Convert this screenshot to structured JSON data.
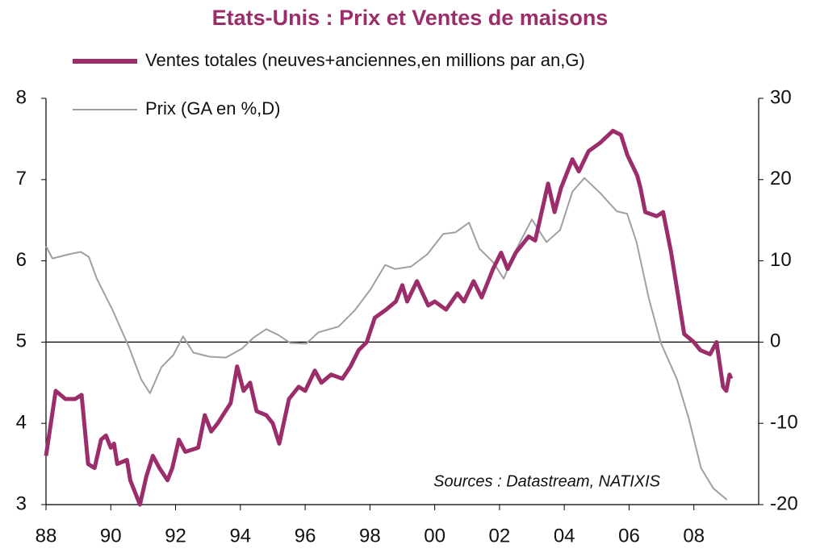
{
  "chart_data": {
    "type": "line",
    "title": "Etats-Unis : Prix et Ventes de maisons",
    "annotation": "Sources : Datastream, NATIXIS",
    "series": [
      {
        "name": "Ventes totales (neuves+anciennes,en millions par an,G)",
        "color": "#9b2d6a",
        "axis": "y",
        "x": [
          1988.0,
          1988.3,
          1988.6,
          1988.9,
          1989.1,
          1989.3,
          1989.5,
          1989.7,
          1989.85,
          1990.0,
          1990.1,
          1990.2,
          1990.5,
          1990.6,
          1990.9,
          1991.1,
          1991.3,
          1991.5,
          1991.75,
          1991.9,
          1992.1,
          1992.3,
          1992.7,
          1992.9,
          1993.1,
          1993.3,
          1993.7,
          1993.9,
          1994.1,
          1994.3,
          1994.5,
          1994.8,
          1995.0,
          1995.2,
          1995.5,
          1995.8,
          1996.0,
          1996.3,
          1996.5,
          1996.8,
          1997.15,
          1997.4,
          1997.65,
          1997.9,
          1998.15,
          1998.5,
          1998.8,
          1999.0,
          1999.15,
          1999.45,
          1999.8,
          2000.0,
          2000.35,
          2000.7,
          2000.9,
          2001.2,
          2001.45,
          2001.8,
          2002.05,
          2002.25,
          2002.5,
          2002.9,
          2003.1,
          2003.5,
          2003.7,
          2003.9,
          2004.25,
          2004.45,
          2004.75,
          2005.1,
          2005.5,
          2005.75,
          2005.95,
          2006.25,
          2006.35,
          2006.5,
          2006.85,
          2007.05,
          2007.3,
          2007.5,
          2007.7,
          2008.0,
          2008.2,
          2008.5,
          2008.7,
          2008.9,
          2009.0,
          2009.1,
          2009.15
        ],
        "values": [
          3.6,
          4.4,
          4.3,
          4.3,
          4.35,
          3.5,
          3.45,
          3.8,
          3.85,
          3.7,
          3.75,
          3.5,
          3.55,
          3.3,
          3.0,
          3.35,
          3.6,
          3.45,
          3.3,
          3.45,
          3.8,
          3.65,
          3.7,
          4.1,
          3.9,
          4.0,
          4.25,
          4.7,
          4.4,
          4.5,
          4.15,
          4.1,
          4.0,
          3.75,
          4.3,
          4.45,
          4.4,
          4.65,
          4.5,
          4.6,
          4.55,
          4.7,
          4.9,
          5.0,
          5.3,
          5.4,
          5.5,
          5.7,
          5.5,
          5.75,
          5.45,
          5.5,
          5.4,
          5.6,
          5.5,
          5.75,
          5.55,
          5.9,
          6.1,
          5.9,
          6.1,
          6.3,
          6.25,
          6.95,
          6.6,
          6.9,
          7.25,
          7.1,
          7.35,
          7.45,
          7.6,
          7.55,
          7.3,
          7.05,
          6.9,
          6.6,
          6.55,
          6.6,
          6.1,
          5.6,
          5.1,
          5.0,
          4.9,
          4.85,
          5.0,
          4.45,
          4.4,
          4.6,
          4.55
        ]
      },
      {
        "name": "Prix (GA en %,D)",
        "color": "#a0a0a0",
        "axis": "y2",
        "x": [
          1988.0,
          1988.2,
          1988.7,
          1989.07,
          1989.32,
          1989.57,
          1990.06,
          1990.56,
          1990.94,
          1991.21,
          1991.56,
          1991.93,
          1992.23,
          1992.55,
          1993.05,
          1993.55,
          1994.05,
          1994.42,
          1994.8,
          1995.16,
          1995.54,
          1996.03,
          1996.41,
          1997.03,
          1997.53,
          1998.02,
          1998.47,
          1998.77,
          1999.27,
          1999.77,
          2000.26,
          2000.64,
          2001.06,
          2001.38,
          2001.81,
          2002.13,
          2002.5,
          2003.0,
          2003.45,
          2003.87,
          2004.25,
          2004.62,
          2005.12,
          2005.62,
          2005.94,
          2006.23,
          2006.61,
          2006.98,
          2007.48,
          2007.85,
          2008.22,
          2008.6,
          2009.02
        ],
        "values": [
          11.8,
          10.3,
          10.8,
          11.1,
          10.5,
          7.8,
          3.9,
          -0.6,
          -4.6,
          -6.3,
          -3.1,
          -1.6,
          0.7,
          -1.3,
          -1.8,
          -1.9,
          -0.8,
          0.6,
          1.6,
          0.9,
          -0.1,
          -0.2,
          1.2,
          1.9,
          3.9,
          6.5,
          9.5,
          9.0,
          9.3,
          10.8,
          13.3,
          13.5,
          14.7,
          11.5,
          9.8,
          7.8,
          11.3,
          15.1,
          12.3,
          13.8,
          18.5,
          20.2,
          18.3,
          16.1,
          15.8,
          12.3,
          5.4,
          -0.1,
          -4.6,
          -9.5,
          -15.5,
          -18.0,
          -19.4
        ]
      }
    ],
    "xlim": [
      1988,
      2010
    ],
    "xticks": [
      {
        "value": 1988,
        "label": "88"
      },
      {
        "value": 1990,
        "label": "90"
      },
      {
        "value": 1992,
        "label": "92"
      },
      {
        "value": 1994,
        "label": "94"
      },
      {
        "value": 1996,
        "label": "96"
      },
      {
        "value": 1998,
        "label": "98"
      },
      {
        "value": 2000,
        "label": "00"
      },
      {
        "value": 2002,
        "label": "02"
      },
      {
        "value": 2004,
        "label": "04"
      },
      {
        "value": 2006,
        "label": "06"
      },
      {
        "value": 2008,
        "label": "08"
      }
    ],
    "ylim": [
      3,
      8
    ],
    "yticks": [
      3,
      4,
      5,
      6,
      7,
      8
    ],
    "y2lim": [
      -20,
      30
    ],
    "y2ticks": [
      -20,
      -10,
      0,
      10,
      20,
      30
    ],
    "zero_line": true,
    "grid": false
  }
}
